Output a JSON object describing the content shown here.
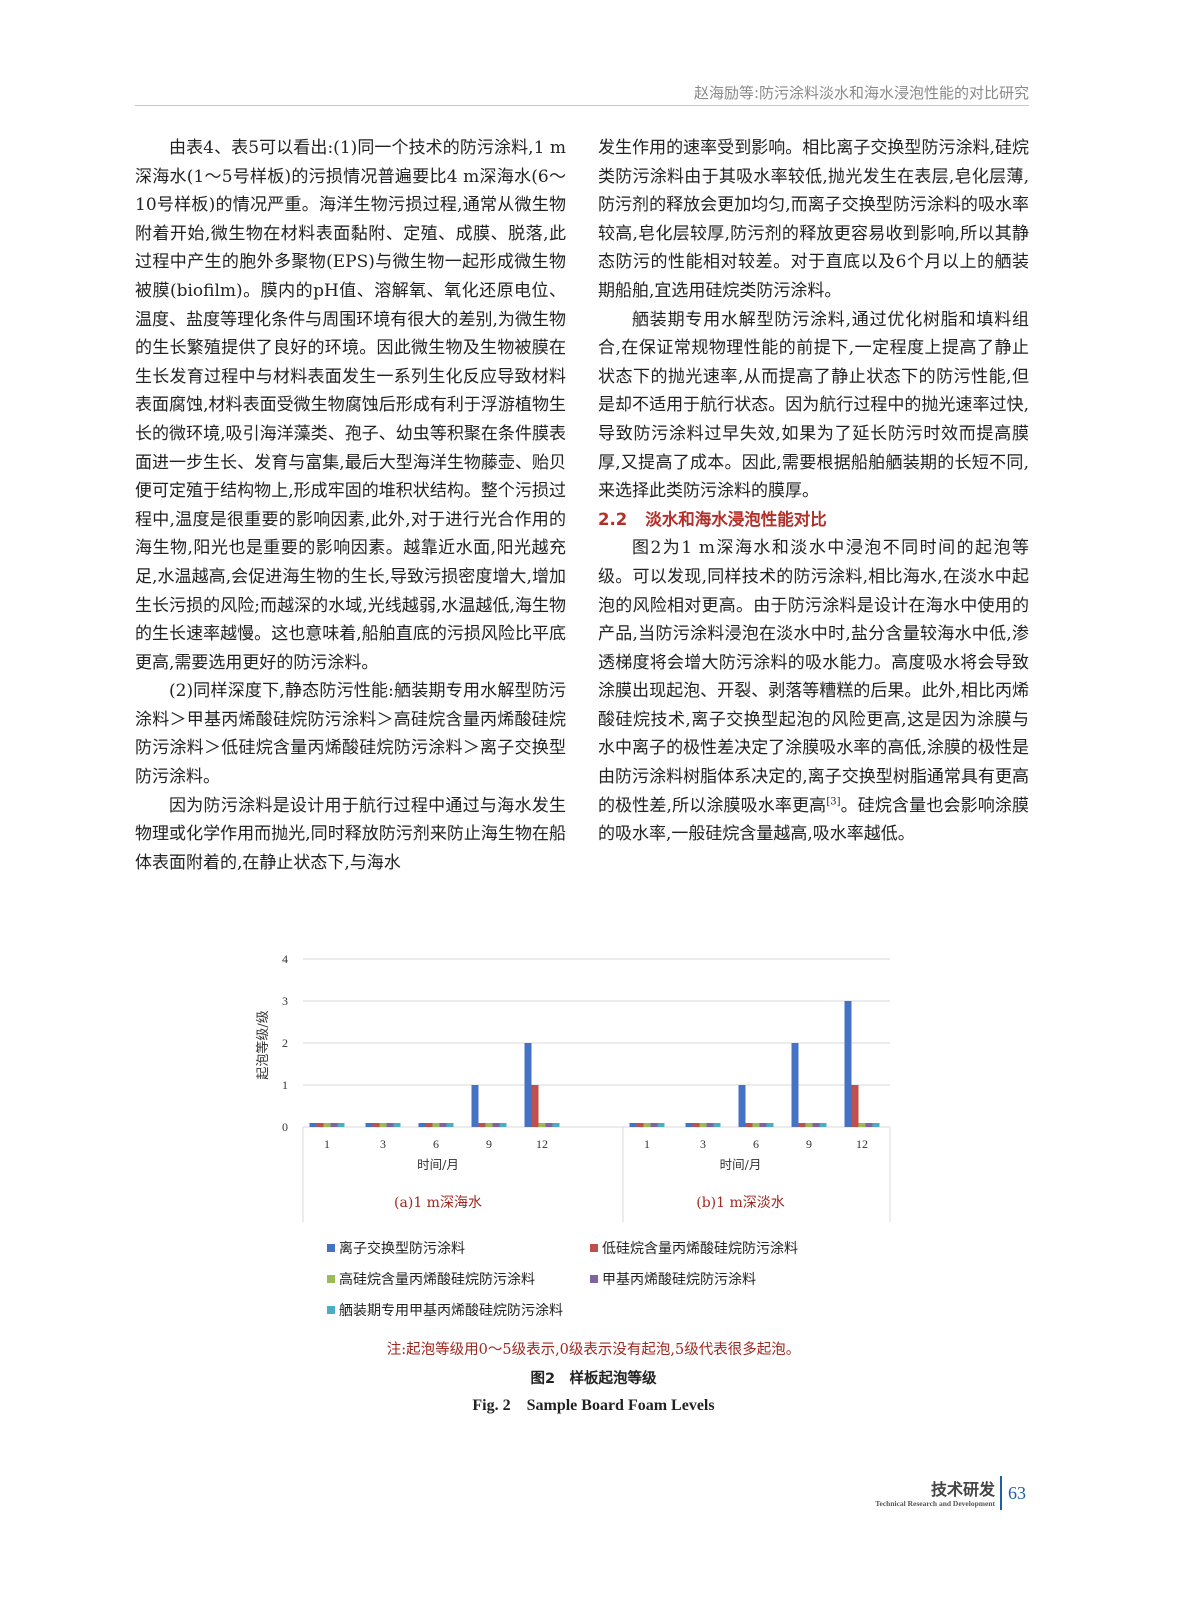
{
  "header": {
    "running_title": "赵海励等:防污涂料淡水和海水浸泡性能的对比研究"
  },
  "left_column": {
    "paragraphs": [
      "由表4、表5可以看出:(1)同一个技术的防污涂料,1 m深海水(1～5号样板)的污损情况普遍要比4 m深海水(6～10号样板)的情况严重。海洋生物污损过程,通常从微生物附着开始,微生物在材料表面黏附、定殖、成膜、脱落,此过程中产生的胞外多聚物(EPS)与微生物一起形成微生物被膜(biofilm)。膜内的pH值、溶解氧、氧化还原电位、温度、盐度等理化条件与周围环境有很大的差别,为微生物的生长繁殖提供了良好的环境。因此微生物及生物被膜在生长发育过程中与材料表面发生一系列生化反应导致材料表面腐蚀,材料表面受微生物腐蚀后形成有利于浮游植物生长的微环境,吸引海洋藻类、孢子、幼虫等积聚在条件膜表面进一步生长、发育与富集,最后大型海洋生物藤壶、贻贝便可定殖于结构物上,形成牢固的堆积状结构。整个污损过程中,温度是很重要的影响因素,此外,对于进行光合作用的海生物,阳光也是重要的影响因素。越靠近水面,阳光越充足,水温越高,会促进海生物的生长,导致污损密度增大,增加生长污损的风险;而越深的水域,光线越弱,水温越低,海生物的生长速率越慢。这也意味着,船舶直底的污损风险比平底更高,需要选用更好的防污涂料。",
      "(2)同样深度下,静态防污性能:舾装期专用水解型防污涂料＞甲基丙烯酸硅烷防污涂料＞高硅烷含量丙烯酸硅烷防污涂料＞低硅烷含量丙烯酸硅烷防污涂料＞离子交换型防污涂料。",
      "因为防污涂料是设计用于航行过程中通过与海水发生物理或化学作用而抛光,同时释放防污剂来防止海生物在船体表面附着的,在静止状态下,与海水"
    ]
  },
  "right_column": {
    "continuation": "发生作用的速率受到影响。相比离子交换型防污涂料,硅烷类防污涂料由于其吸水率较低,抛光发生在表层,皂化层薄,防污剂的释放会更加均匀,而离子交换型防污涂料的吸水率较高,皂化层较厚,防污剂的释放更容易收到影响,所以其静态防污的性能相对较差。对于直底以及6个月以上的舾装期船舶,宜选用硅烷类防污涂料。",
    "paragraph2": "舾装期专用水解型防污涂料,通过优化树脂和填料组合,在保证常规物理性能的前提下,一定程度上提高了静止状态下的抛光速率,从而提高了静止状态下的防污性能,但是却不适用于航行状态。因为航行过程中的抛光速率过快,导致防污涂料过早失效,如果为了延长防污时效而提高膜厚,又提高了成本。因此,需要根据船舶舾装期的长短不同,来选择此类防污涂料的膜厚。",
    "section_number": "2.2",
    "section_title": "淡水和海水浸泡性能对比",
    "paragraph3_before_ref": "图2为1 m深海水和淡水中浸泡不同时间的起泡等级。可以发现,同样技术的防污涂料,相比海水,在淡水中起泡的风险相对更高。由于防污涂料是设计在海水中使用的产品,当防污涂料浸泡在淡水中时,盐分含量较海水中低,渗透梯度将会增大防污涂料的吸水能力。高度吸水将会导致涂膜出现起泡、开裂、剥落等糟糕的后果。此外,相比丙烯酸硅烷技术,离子交换型起泡的风险更高,这是因为涂膜与水中离子的极性差决定了涂膜吸水率的高低,涂膜的极性是由防污涂料树脂体系决定的,离子交换型树脂通常具有更高的极性差,所以涂膜吸水率更高",
    "reference": "[3]",
    "paragraph3_after_ref": "。硅烷含量也会影响涂膜的吸水率,一般硅烷含量越高,吸水率越低。"
  },
  "chart_data": {
    "type": "bar",
    "ylabel": "起泡等级/级",
    "ylim": [
      0,
      4
    ],
    "yticks": [
      "0",
      "1",
      "2",
      "3",
      "4"
    ],
    "grid": true,
    "legend_position": "bottom",
    "panels": [
      {
        "title": "(a)1 m深海水",
        "xlabel": "时间/月",
        "categories": [
          "1",
          "3",
          "6",
          "9",
          "12"
        ],
        "series": [
          {
            "name": "离子交换型防污涂料",
            "color": "#4472c4",
            "values": [
              0,
              0,
              0,
              1,
              2
            ]
          },
          {
            "name": "低硅烷含量丙烯酸硅烷防污涂料",
            "color": "#c0504d",
            "values": [
              0,
              0,
              0,
              0,
              1
            ]
          },
          {
            "name": "高硅烷含量丙烯酸硅烷防污涂料",
            "color": "#9bbb59",
            "values": [
              0,
              0,
              0,
              0,
              0
            ]
          },
          {
            "name": "甲基丙烯酸硅烷防污涂料",
            "color": "#8064a2",
            "values": [
              0,
              0,
              0,
              0,
              0
            ]
          },
          {
            "name": "舾装期专用甲基丙烯酸硅烷防污涂料",
            "color": "#4bacc6",
            "values": [
              0,
              0,
              0,
              0,
              0
            ]
          }
        ]
      },
      {
        "title": "(b)1 m深淡水",
        "xlabel": "时间/月",
        "categories": [
          "1",
          "3",
          "6",
          "9",
          "12"
        ],
        "series": [
          {
            "name": "离子交换型防污涂料",
            "color": "#4472c4",
            "values": [
              0,
              0,
              1,
              2,
              3
            ]
          },
          {
            "name": "低硅烷含量丙烯酸硅烷防污涂料",
            "color": "#c0504d",
            "values": [
              0,
              0,
              0,
              0,
              1
            ]
          },
          {
            "name": "高硅烷含量丙烯酸硅烷防污涂料",
            "color": "#9bbb59",
            "values": [
              0,
              0,
              0,
              0,
              0
            ]
          },
          {
            "name": "甲基丙烯酸硅烷防污涂料",
            "color": "#8064a2",
            "values": [
              0,
              0,
              0,
              0,
              0
            ]
          },
          {
            "name": "舾装期专用甲基丙烯酸硅烷防污涂料",
            "color": "#4bacc6",
            "values": [
              0,
              0,
              0,
              0,
              0
            ]
          }
        ]
      }
    ],
    "note": "注:起泡等级用0～5级表示,0级表示没有起泡,5级代表很多起泡。"
  },
  "figure": {
    "caption_cn": "图2　样板起泡等级",
    "caption_en": "Fig. 2　Sample Board Foam Levels"
  },
  "footer": {
    "section_cn": "技术研发",
    "section_en": "Technical Research and Development",
    "page_number": "63"
  },
  "colors": {
    "accent_red": "#b3302a",
    "accent_blue": "#1f5fa8"
  }
}
